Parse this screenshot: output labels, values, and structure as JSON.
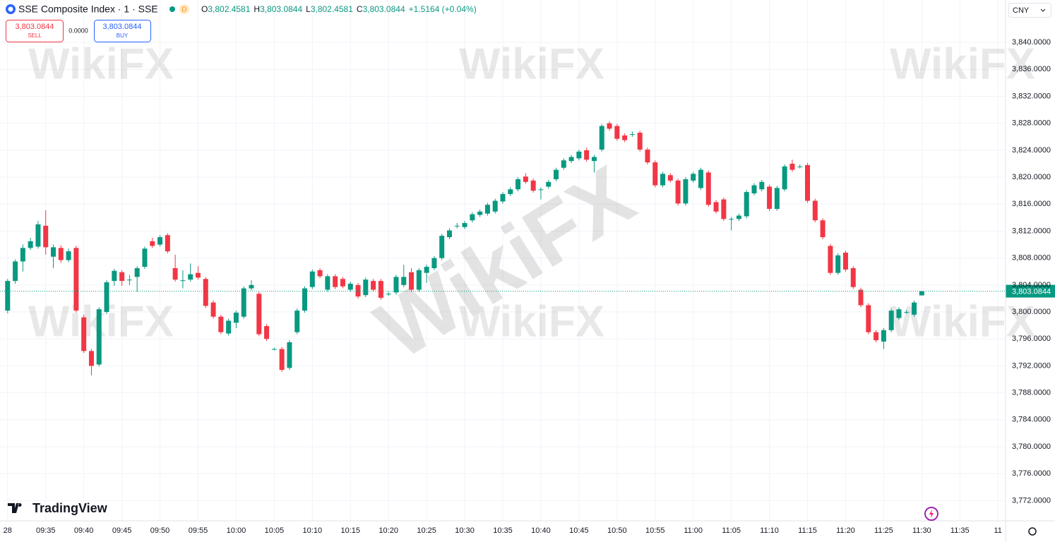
{
  "header": {
    "symbol": "SSE Composite Index · 1 · SSE",
    "badge": "D",
    "ohlc": [
      {
        "key": "O",
        "value": "3,802.4581"
      },
      {
        "key": "H",
        "value": "3,803.0844"
      },
      {
        "key": "L",
        "value": "3,802.4581"
      },
      {
        "key": "C",
        "value": "3,803.0844"
      }
    ],
    "change": "+1.5164 (+0.04%)"
  },
  "trade": {
    "sell_price": "3,803.0844",
    "sell_label": "SELL",
    "spread": "0.0000",
    "buy_price": "3,803.0844",
    "buy_label": "BUY"
  },
  "currency": "CNY",
  "last_price_label": "3,803.0844",
  "logo": "TradingView",
  "watermark": "WikiFX",
  "chart_data": {
    "type": "candlestick",
    "up_color": "#089981",
    "down_color": "#f23645",
    "grid": true,
    "categories": [
      "09:30",
      "09:31",
      "09:32",
      "09:33",
      "09:34",
      "09:35",
      "09:36",
      "09:37",
      "09:38",
      "09:39",
      "09:40",
      "09:41",
      "09:42",
      "09:43",
      "09:44",
      "09:45",
      "09:46",
      "09:47",
      "09:48",
      "09:49",
      "09:50",
      "09:51",
      "09:52",
      "09:53",
      "09:54",
      "09:55",
      "09:56",
      "09:57",
      "09:58",
      "09:59",
      "10:00",
      "10:01",
      "10:02",
      "10:03",
      "10:04",
      "10:05",
      "10:06",
      "10:07",
      "10:08",
      "10:09",
      "10:10",
      "10:11",
      "10:12",
      "10:13",
      "10:14",
      "10:15",
      "10:16",
      "10:17",
      "10:18",
      "10:19",
      "10:20",
      "10:21",
      "10:22",
      "10:23",
      "10:24",
      "10:25",
      "10:26",
      "10:27",
      "10:28",
      "10:29",
      "10:30",
      "10:31",
      "10:32",
      "10:33",
      "10:34",
      "10:35",
      "10:36",
      "10:37",
      "10:38",
      "10:39",
      "10:40",
      "10:41",
      "10:42",
      "10:43",
      "10:44",
      "10:45",
      "10:46",
      "10:47",
      "10:48",
      "10:49",
      "10:50",
      "10:51",
      "10:52",
      "10:53",
      "10:54",
      "10:55",
      "10:56",
      "10:57",
      "10:58",
      "10:59",
      "11:00",
      "11:01",
      "11:02",
      "11:03",
      "11:04",
      "11:05",
      "11:06",
      "11:07",
      "11:08",
      "11:09",
      "11:10",
      "11:11",
      "11:12",
      "11:13",
      "11:14",
      "11:15",
      "11:16",
      "11:17",
      "11:18",
      "11:19",
      "11:20",
      "11:21",
      "11:22",
      "11:23",
      "11:24",
      "11:25",
      "11:26",
      "11:27",
      "11:28",
      "11:29",
      "11:30"
    ],
    "open": [
      3800.2,
      3804.6,
      3807.5,
      3809.5,
      3809.7,
      3812.8,
      3808.2,
      3809.5,
      3807.7,
      3809.5,
      3799.2,
      3794.2,
      3792.2,
      3800,
      3804.6,
      3805.9,
      3804.8,
      3805.2,
      3806.7,
      3810.5,
      3810,
      3811.4,
      3806.5,
      3804.7,
      3804.8,
      3805.8,
      3804.9,
      3801.4,
      3799.3,
      3796.8,
      3798.4,
      3799.3,
      3803.5,
      3802.7,
      3797.9,
      3794.5,
      3794.5,
      3791.7,
      3797,
      3800.2,
      3803.7,
      3806.2,
      3803.3,
      3805.3,
      3804.9,
      3803.3,
      3804,
      3802.5,
      3804.6,
      3804.6,
      3802.7,
      3802.9,
      3804,
      3805.9,
      3803.3,
      3805.8,
      3806.5,
      3808,
      3811.1,
      3812.8,
      3812.6,
      3813.6,
      3814.4,
      3814.6,
      3814.9,
      3816.4,
      3817.5,
      3818.2,
      3820.1,
      3819.5,
      3818.2,
      3818.6,
      3819.7,
      3821.4,
      3822.4,
      3822.8,
      3824,
      3822.4,
      3824.1,
      3828,
      3827.6,
      3826.2,
      3826.4,
      3826.6,
      3824.1,
      3822.2,
      3818.8,
      3820.3,
      3819.5,
      3816.1,
      3819.5,
      3818.4,
      3820.7,
      3816.3,
      3816.7,
      3813.8,
      3813.8,
      3814.2,
      3817.6,
      3818.2,
      3818.6,
      3815.3,
      3818.2,
      3822,
      3821.6,
      3821.8,
      3816.5,
      3813.6,
      3809.8,
      3805.8,
      3808.8,
      3806.5,
      3803.3,
      3801,
      3797,
      3795.6,
      3797.3,
      3799.1,
      3800,
      3799.6,
      3802.4581
    ],
    "high": [
      3804.9,
      3807.8,
      3810,
      3811,
      3813.5,
      3815.1,
      3810,
      3809.9,
      3809.4,
      3809.8,
      3799.6,
      3794.5,
      3800.7,
      3804.7,
      3806.4,
      3806.2,
      3805.5,
      3806.8,
      3809.7,
      3811,
      3811.4,
      3811.7,
      3808.5,
      3806.2,
      3807.2,
      3806.8,
      3805.2,
      3801.7,
      3799.6,
      3799,
      3800.2,
      3803.8,
      3804.7,
      3803,
      3798.2,
      3794.7,
      3794.8,
      3795.8,
      3800.5,
      3803.8,
      3806.3,
      3806.5,
      3805.6,
      3805.6,
      3805.2,
      3804.5,
      3804.3,
      3805.1,
      3804.9,
      3804.9,
      3803,
      3805.5,
      3807,
      3806.5,
      3806.5,
      3807,
      3808.3,
      3811.6,
      3812.4,
      3813.2,
      3813.5,
      3814.8,
      3815.2,
      3816.2,
      3816.8,
      3817.8,
      3818.5,
      3820,
      3820.6,
      3819.8,
      3818.5,
      3819.6,
      3821.4,
      3822.8,
      3823.3,
      3824.1,
      3824.4,
      3823.3,
      3827.9,
      3828.3,
      3827.9,
      3826.5,
      3826.8,
      3826.9,
      3824.4,
      3822.5,
      3820.8,
      3820.6,
      3819.8,
      3820,
      3820.8,
      3821.4,
      3821,
      3816.6,
      3817,
      3814.1,
      3814.6,
      3818.1,
      3819.1,
      3819.6,
      3818.9,
      3818.7,
      3821.9,
      3822.6,
      3821.9,
      3822.1,
      3816.8,
      3813.9,
      3810.1,
      3808.7,
      3809.1,
      3806.8,
      3803.6,
      3801.3,
      3797.3,
      3797.6,
      3800.5,
      3800.7,
      3800.3,
      3801.7,
      3803.0844
    ],
    "low": [
      3799.8,
      3804.2,
      3806,
      3809.2,
      3809.4,
      3808.5,
      3806.5,
      3807.3,
      3807.4,
      3799.9,
      3793.9,
      3790.6,
      3791.9,
      3799.7,
      3803.9,
      3803.9,
      3804,
      3803,
      3806.4,
      3809.5,
      3809.7,
      3808.7,
      3804.5,
      3803.5,
      3804.5,
      3804.8,
      3800.6,
      3799,
      3796.7,
      3796.5,
      3797.6,
      3799,
      3803.2,
      3796.4,
      3795.7,
      3794.3,
      3791.1,
      3791.4,
      3796.7,
      3799.9,
      3803.4,
      3805,
      3803,
      3803.4,
      3803.5,
      3803,
      3802,
      3802.2,
      3803,
      3801.8,
      3802.4,
      3802.6,
      3803.7,
      3803,
      3803,
      3804.3,
      3806.2,
      3807.7,
      3810.8,
      3812.4,
      3812.3,
      3813.3,
      3814.1,
      3814.3,
      3814.6,
      3816.1,
      3817.2,
      3817.9,
      3819,
      3817.7,
      3816.7,
      3818.3,
      3819.4,
      3821.1,
      3822.1,
      3822.5,
      3822.3,
      3820.7,
      3823.8,
      3826.9,
      3825.4,
      3825.2,
      3826,
      3823.8,
      3821.9,
      3818.5,
      3818.5,
      3819.2,
      3815.8,
      3815.8,
      3819.2,
      3818.1,
      3815.6,
      3814.6,
      3813.5,
      3812.1,
      3813.5,
      3813.9,
      3817.3,
      3817.9,
      3815,
      3815,
      3817.9,
      3820.8,
      3821.3,
      3816.2,
      3813.3,
      3810.8,
      3805.5,
      3805.5,
      3806,
      3803.4,
      3800.7,
      3796.7,
      3795.5,
      3794.5,
      3797,
      3798.8,
      3799.7,
      3799.3,
      3802.4581
    ],
    "close": [
      3804.6,
      3807.5,
      3809.5,
      3810.5,
      3813,
      3809.6,
      3809.6,
      3807.7,
      3809,
      3800.2,
      3794.2,
      3792,
      3800.4,
      3804.4,
      3806.1,
      3804.6,
      3804.8,
      3806.5,
      3809.4,
      3809.8,
      3811.1,
      3809,
      3804.8,
      3804.7,
      3805.6,
      3805.1,
      3800.9,
      3799.3,
      3797,
      3798.7,
      3799.9,
      3803.5,
      3804,
      3796.7,
      3796,
      3794.5,
      3791.4,
      3795.5,
      3800.2,
      3803.5,
      3806,
      3805.3,
      3805.3,
      3803.7,
      3803.8,
      3804.2,
      3802.3,
      3804.8,
      3803.3,
      3802.1,
      3802.7,
      3805.2,
      3805.2,
      3803.3,
      3806.2,
      3806.7,
      3808,
      3811.3,
      3812.1,
      3812.8,
      3813.2,
      3814.5,
      3814.9,
      3815.9,
      3816.5,
      3817.5,
      3818.2,
      3819.7,
      3819.3,
      3818,
      3818.2,
      3819.3,
      3821.1,
      3822.5,
      3823,
      3823.8,
      3822.6,
      3823,
      3827.6,
      3827.2,
      3825.7,
      3825.5,
      3826.4,
      3824.1,
      3822.2,
      3818.8,
      3820.5,
      3819.5,
      3816.1,
      3819.7,
      3820.5,
      3821.1,
      3815.9,
      3814.9,
      3813.8,
      3813.8,
      3814.3,
      3817.8,
      3818.8,
      3819.3,
      3815.3,
      3818.4,
      3821.6,
      3821.1,
      3821.6,
      3816.5,
      3813.6,
      3811.1,
      3805.8,
      3808.4,
      3806.3,
      3803.7,
      3801,
      3797,
      3795.8,
      3797.3,
      3800.2,
      3800.4,
      3800,
      3801.4,
      3803.0844
    ],
    "xlim": [
      "09:29",
      "11:41"
    ],
    "xticks": [
      {
        "value": "09:30",
        "label": "28"
      },
      "09:35",
      "09:40",
      "09:45",
      "09:50",
      "09:55",
      "10:00",
      "10:05",
      "10:10",
      "10:15",
      "10:20",
      "10:25",
      "10:30",
      "10:35",
      "10:40",
      "10:45",
      "10:50",
      "10:55",
      "11:00",
      "11:05",
      "11:10",
      "11:15",
      "11:20",
      "11:25",
      "11:30",
      "11:35",
      {
        "value": "11:40",
        "label": "11"
      }
    ],
    "ylim": [
      3769,
      3846.3
    ],
    "yticks": [
      {
        "value": 3772,
        "label": "3,772.0000"
      },
      {
        "value": 3776,
        "label": "3,776.0000"
      },
      {
        "value": 3780,
        "label": "3,780.0000"
      },
      {
        "value": 3784,
        "label": "3,784.0000"
      },
      {
        "value": 3788,
        "label": "3,788.0000"
      },
      {
        "value": 3792,
        "label": "3,792.0000"
      },
      {
        "value": 3796,
        "label": "3,796.0000"
      },
      {
        "value": 3800,
        "label": "3,800.0000"
      },
      {
        "value": 3804,
        "label": "3,804.0000"
      },
      {
        "value": 3808,
        "label": "3,808.0000"
      },
      {
        "value": 3812,
        "label": "3,812.0000"
      },
      {
        "value": 3816,
        "label": "3,816.0000"
      },
      {
        "value": 3820,
        "label": "3,820.0000"
      },
      {
        "value": 3824,
        "label": "3,824.0000"
      },
      {
        "value": 3828,
        "label": "3,828.0000"
      },
      {
        "value": 3832,
        "label": "3,832.0000"
      },
      {
        "value": 3836,
        "label": "3,836.0000"
      },
      {
        "value": 3840,
        "label": "3,840.0000"
      }
    ]
  }
}
